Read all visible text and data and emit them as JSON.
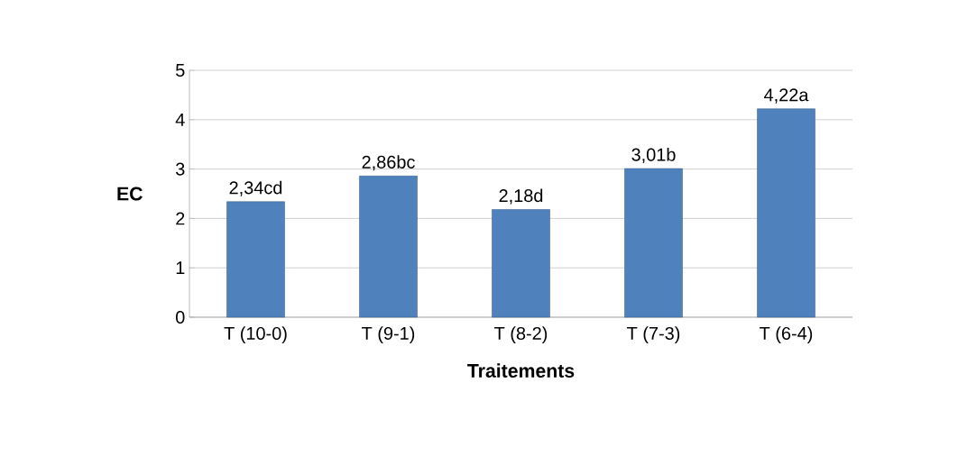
{
  "chart_data": {
    "type": "bar",
    "xlabel": "Traitements",
    "ylabel": "EC",
    "categories": [
      "T (10-0)",
      "T (9-1)",
      "T (8-2)",
      "T (7-3)",
      "T (6-4)"
    ],
    "values": [
      2.34,
      2.86,
      2.18,
      3.01,
      4.22
    ],
    "value_labels": [
      "2,34cd",
      "2,86bc",
      "2,18d",
      "3,01b",
      "4,22a"
    ],
    "color": "#4f81bd",
    "ylim": [
      0,
      5
    ],
    "yticks": [
      0,
      1,
      2,
      3,
      4,
      5
    ],
    "grid": "y"
  }
}
